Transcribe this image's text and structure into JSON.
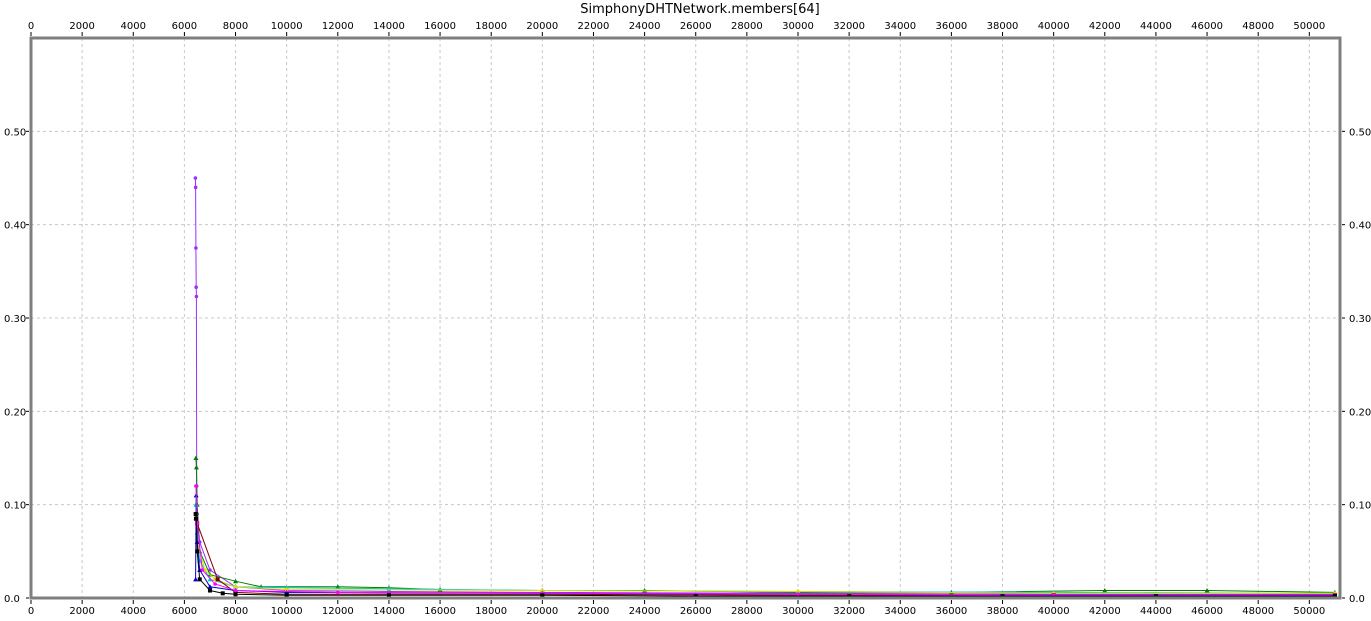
{
  "chart_data": {
    "type": "line",
    "title": "SimphonyDHTNetwork.members[64]",
    "xlabel": "",
    "ylabel": "",
    "xlim": [
      0,
      51200
    ],
    "ylim": [
      0,
      0.6
    ],
    "x_ticks": [
      0,
      2000,
      4000,
      6000,
      8000,
      10000,
      12000,
      14000,
      16000,
      18000,
      20000,
      22000,
      24000,
      26000,
      28000,
      30000,
      32000,
      34000,
      36000,
      38000,
      40000,
      42000,
      44000,
      46000,
      48000,
      50000
    ],
    "x_tick_labels": [
      "0",
      "2000",
      "4000",
      "6000",
      "8000",
      "10000",
      "12000",
      "14000",
      "16000",
      "18000",
      "20000",
      "22000",
      "24000",
      "26000",
      "28000",
      "30000",
      "32000",
      "34000",
      "36000",
      "38000",
      "40000",
      "42000",
      "44000",
      "46000",
      "48000",
      "50000"
    ],
    "y_ticks": [
      0,
      0.1,
      0.2,
      0.3,
      0.4,
      0.5
    ],
    "y_tick_labels": [
      "0.0",
      "0.10",
      "0.20",
      "0.30",
      "0.40",
      "0.50"
    ],
    "grid": true,
    "legend": "none",
    "series": [
      {
        "color": "#9b30ff",
        "marker": "circle",
        "x": [
          6430,
          6440,
          6450,
          6460,
          6470,
          6480,
          6500,
          6600,
          7000,
          8000,
          10000,
          14000,
          20000,
          30000,
          40000,
          51000
        ],
        "y": [
          0.45,
          0.44,
          0.375,
          0.333,
          0.323,
          0.12,
          0.09,
          0.06,
          0.03,
          0.012,
          0.008,
          0.007,
          0.006,
          0.005,
          0.004,
          0.004
        ]
      },
      {
        "color": "#008000",
        "marker": "triangle",
        "x": [
          6450,
          6470,
          6500,
          6600,
          7000,
          8000,
          9000,
          12000,
          14000,
          16000,
          20000,
          24000,
          30000,
          36000,
          42000,
          46000,
          51000
        ],
        "y": [
          0.15,
          0.14,
          0.1,
          0.05,
          0.025,
          0.018,
          0.012,
          0.012,
          0.011,
          0.009,
          0.008,
          0.008,
          0.006,
          0.006,
          0.008,
          0.008,
          0.006
        ]
      },
      {
        "color": "#00cccc",
        "marker": "triangle",
        "x": [
          6450,
          6500,
          6600,
          7000,
          8000,
          10000,
          14000,
          20000,
          30000,
          40000,
          51000
        ],
        "y": [
          0.1,
          0.07,
          0.04,
          0.02,
          0.012,
          0.011,
          0.01,
          0.008,
          0.007,
          0.006,
          0.005
        ]
      },
      {
        "color": "#dddd00",
        "marker": "circle",
        "x": [
          6450,
          6500,
          6800,
          7200,
          8000,
          10000,
          20000,
          30000,
          40000,
          51000
        ],
        "y": [
          0.09,
          0.06,
          0.03,
          0.02,
          0.012,
          0.009,
          0.008,
          0.007,
          0.005,
          0.005
        ]
      },
      {
        "color": "#800000",
        "marker": "square",
        "x": [
          6450,
          6500,
          7300,
          8000,
          10000,
          20000,
          30000,
          40000,
          51000
        ],
        "y": [
          0.085,
          0.08,
          0.02,
          0.006,
          0.004,
          0.004,
          0.003,
          0.003,
          0.003
        ]
      },
      {
        "color": "#0000cc",
        "marker": "triangle",
        "x": [
          6440,
          6460,
          6500,
          6600,
          7000,
          8000,
          10000,
          20000,
          30000,
          40000,
          51000
        ],
        "y": [
          0.02,
          0.11,
          0.06,
          0.03,
          0.012,
          0.008,
          0.006,
          0.005,
          0.004,
          0.003,
          0.003
        ]
      },
      {
        "color": "#ff00ff",
        "marker": "circle",
        "x": [
          6450,
          6500,
          6700,
          7200,
          8000,
          12000,
          20000,
          30000,
          40000,
          51000
        ],
        "y": [
          0.12,
          0.08,
          0.03,
          0.015,
          0.008,
          0.006,
          0.005,
          0.004,
          0.003,
          0.003
        ]
      },
      {
        "color": "#000000",
        "marker": "square",
        "x": [
          6440,
          6460,
          6500,
          6600,
          7000,
          7500,
          8000,
          10000,
          14000,
          20000,
          26000,
          32000,
          38000,
          44000,
          51000
        ],
        "y": [
          0.09,
          0.085,
          0.05,
          0.02,
          0.008,
          0.005,
          0.004,
          0.003,
          0.003,
          0.003,
          0.002,
          0.002,
          0.002,
          0.002,
          0.002
        ]
      }
    ]
  }
}
